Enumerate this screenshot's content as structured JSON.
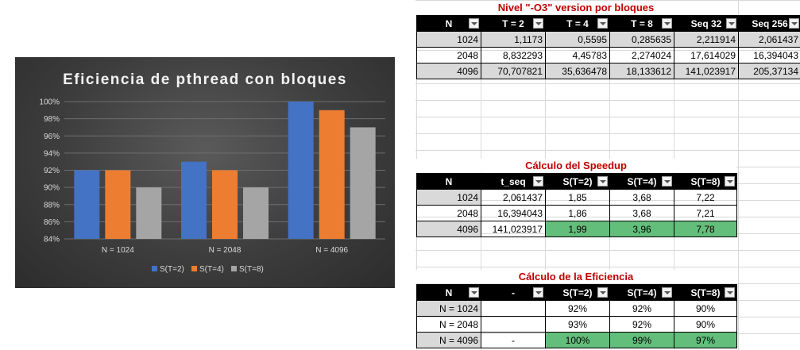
{
  "chart_data": {
    "type": "bar",
    "title": "Eficiencia  de pthread  con bloques",
    "categories": [
      "N = 1024",
      "N = 2048",
      "N = 4096"
    ],
    "series": [
      {
        "name": "S(T=2)",
        "color": "#4472c4",
        "values": [
          92,
          93,
          100
        ]
      },
      {
        "name": "S(T=4)",
        "color": "#ed7d31",
        "values": [
          92,
          92,
          99
        ]
      },
      {
        "name": "S(T=8)",
        "color": "#a5a5a5",
        "values": [
          90,
          90,
          97
        ]
      }
    ],
    "ylim": [
      84,
      100
    ],
    "yticks": [
      "84%",
      "86%",
      "88%",
      "90%",
      "92%",
      "94%",
      "96%",
      "98%",
      "100%"
    ],
    "grid": true,
    "legend": "bottom"
  },
  "table1": {
    "title": "Nivel \"-O3\" version por bloques",
    "headers": [
      "N",
      "T = 2",
      "T = 4",
      "T = 8",
      "Seq 32",
      "Seq 256"
    ],
    "rows": [
      [
        "1024",
        "1,1173",
        "0,5595",
        "0,285635",
        "2,211914",
        "2,061437"
      ],
      [
        "2048",
        "8,832293",
        "4,45783",
        "2,274024",
        "17,614029",
        "16,394043"
      ],
      [
        "4096",
        "70,707821",
        "35,636478",
        "18,133612",
        "141,023917",
        "205,37134"
      ]
    ]
  },
  "table2": {
    "title": "Cálculo del Speedup",
    "headers": [
      "N",
      "t_seq",
      "S(T=2)",
      "S(T=4)",
      "S(T=8)"
    ],
    "rows": [
      [
        "1024",
        "2,061437",
        "1,85",
        "3,68",
        "7,22"
      ],
      [
        "2048",
        "16,394043",
        "1,86",
        "3,68",
        "7,21"
      ],
      [
        "4096",
        "141,023917",
        "1,99",
        "3,96",
        "7,78"
      ]
    ]
  },
  "table3": {
    "title": "Cálculo de la Eficiencia",
    "headers": [
      "N",
      "-",
      "S(T=2)",
      "S(T=4)",
      "S(T=8)"
    ],
    "rows": [
      [
        "N = 1024",
        "",
        "92%",
        "92%",
        "90%"
      ],
      [
        "N = 2048",
        "",
        "93%",
        "92%",
        "90%"
      ],
      [
        "N = 4096",
        "-",
        "100%",
        "99%",
        "97%"
      ]
    ]
  },
  "colors": {
    "title_red": "#c00000",
    "header_black": "#000000",
    "highlight_green": "#63be7b",
    "row_gray": "#d9d9d9"
  }
}
